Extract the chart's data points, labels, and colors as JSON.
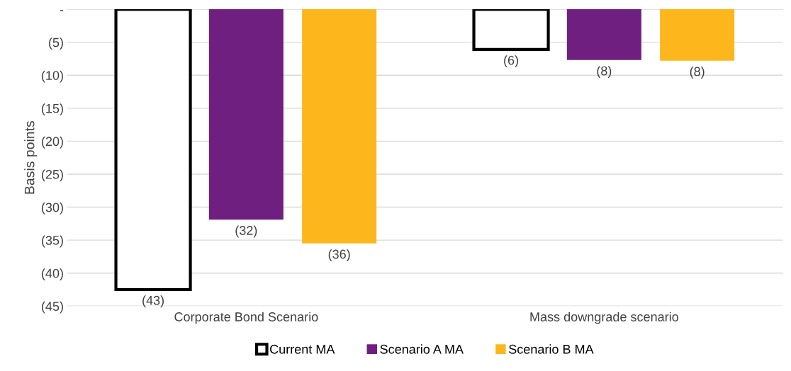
{
  "chart_data": {
    "type": "bar",
    "ylabel": "Basis points",
    "categories": [
      "Corporate Bond Scenario",
      "Mass downgrade scenario"
    ],
    "series": [
      {
        "name": "Current MA",
        "color": "#ffffff",
        "values": [
          -42.5,
          -6.1
        ],
        "value_labels": [
          "(43)",
          "(6)"
        ]
      },
      {
        "name": "Scenario A MA",
        "color": "#6f1f7f",
        "values": [
          -31.9,
          -7.7
        ],
        "value_labels": [
          "(32)",
          "(8)"
        ]
      },
      {
        "name": "Scenario B MA",
        "color": "#fdb71c",
        "values": [
          -35.5,
          -7.8
        ],
        "value_labels": [
          "(36)",
          "(8)"
        ]
      }
    ],
    "ylim": [
      -45,
      0
    ],
    "yticks": [
      {
        "value": 0,
        "label": "-"
      },
      {
        "value": -5,
        "label": "(5)"
      },
      {
        "value": -10,
        "label": "(10)"
      },
      {
        "value": -15,
        "label": "(15)"
      },
      {
        "value": -20,
        "label": "(20)"
      },
      {
        "value": -25,
        "label": "(25)"
      },
      {
        "value": -30,
        "label": "(30)"
      },
      {
        "value": -35,
        "label": "(35)"
      },
      {
        "value": -40,
        "label": "(40)"
      },
      {
        "value": -45,
        "label": "(45)"
      }
    ],
    "grid": "y",
    "legend": "bottom"
  }
}
